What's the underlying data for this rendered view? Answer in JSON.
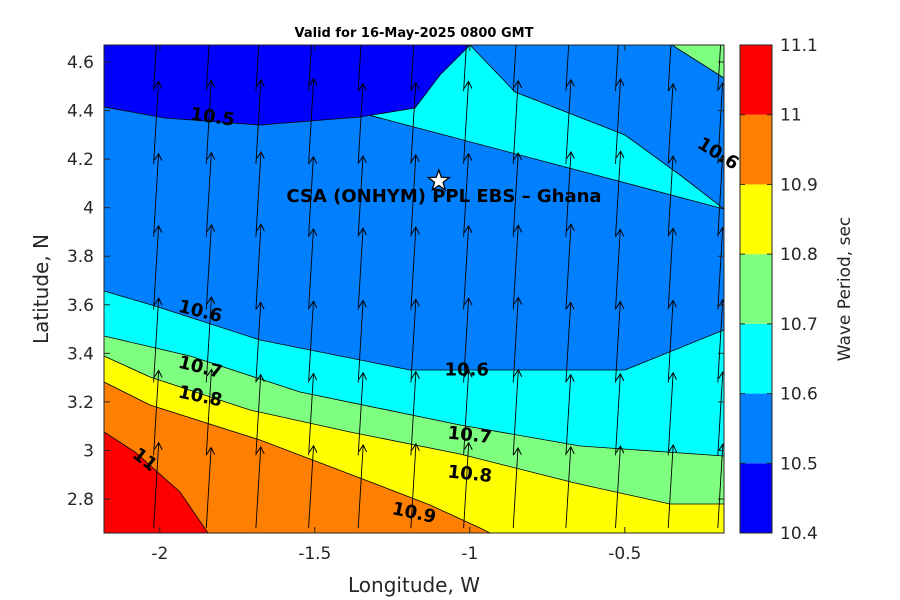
{
  "chart_data": {
    "type": "contour",
    "title": "Valid for 16-May-2025 0800 GMT",
    "xlabel": "Longitude, W",
    "ylabel": "Latitude, N",
    "xlim": [
      -2.18,
      -0.18
    ],
    "ylim": [
      2.66,
      4.67
    ],
    "xticks": [
      -2,
      -1.5,
      -1,
      -0.5
    ],
    "xtick_labels": [
      "-2",
      "-1.5",
      "-1",
      "-0.5"
    ],
    "yticks": [
      2.8,
      3.0,
      3.2,
      3.4,
      3.6,
      3.8,
      4.0,
      4.2,
      4.4,
      4.6
    ],
    "ytick_labels": [
      "2.8",
      "3",
      "3.2",
      "3.4",
      "3.6",
      "3.8",
      "4",
      "4.2",
      "4.4",
      "4.6"
    ],
    "colorbar": {
      "label": "Wave Period, sec",
      "levels": [
        10.4,
        10.5,
        10.6,
        10.7,
        10.8,
        10.9,
        11.0,
        11.1
      ],
      "tick_labels": [
        "10.4",
        "10.5",
        "10.6",
        "10.7",
        "10.8",
        "10.9",
        "11",
        "11.1"
      ],
      "colors": [
        "#0000ff",
        "#007fff",
        "#00ffff",
        "#7fff7f",
        "#ffff00",
        "#ff7f00",
        "#ff0000"
      ]
    },
    "contour_labels": [
      {
        "text": "10.5",
        "x": -1.83,
        "y": 4.37
      },
      {
        "text": "10.6",
        "x": -0.2,
        "y": 4.22
      },
      {
        "text": "10.6",
        "x": -1.87,
        "y": 3.57
      },
      {
        "text": "10.6",
        "x": -1.01,
        "y": 3.33
      },
      {
        "text": "10.7",
        "x": -1.87,
        "y": 3.34
      },
      {
        "text": "10.7",
        "x": -1.0,
        "y": 3.06
      },
      {
        "text": "10.8",
        "x": -1.87,
        "y": 3.22
      },
      {
        "text": "10.8",
        "x": -1.0,
        "y": 2.9
      },
      {
        "text": "10.9",
        "x": -1.18,
        "y": 2.74
      },
      {
        "text": "11",
        "x": -2.05,
        "y": 2.96
      }
    ],
    "wave_direction_arrows": {
      "x": [
        -2.02,
        -1.85,
        -1.69,
        -1.52,
        -1.36,
        -1.19,
        -1.02,
        -0.86,
        -0.69,
        -0.53,
        -0.36,
        -0.2
      ],
      "y": [
        2.68,
        2.98,
        3.28,
        3.58,
        3.88,
        4.18,
        4.48
      ],
      "direction": "toward north (slightly NNE)"
    },
    "site_marker": {
      "x": -1.1,
      "y": 4.11,
      "shape": "star"
    },
    "annotation": "CSA (ONHYM) PPL EBS  – Ghana"
  }
}
